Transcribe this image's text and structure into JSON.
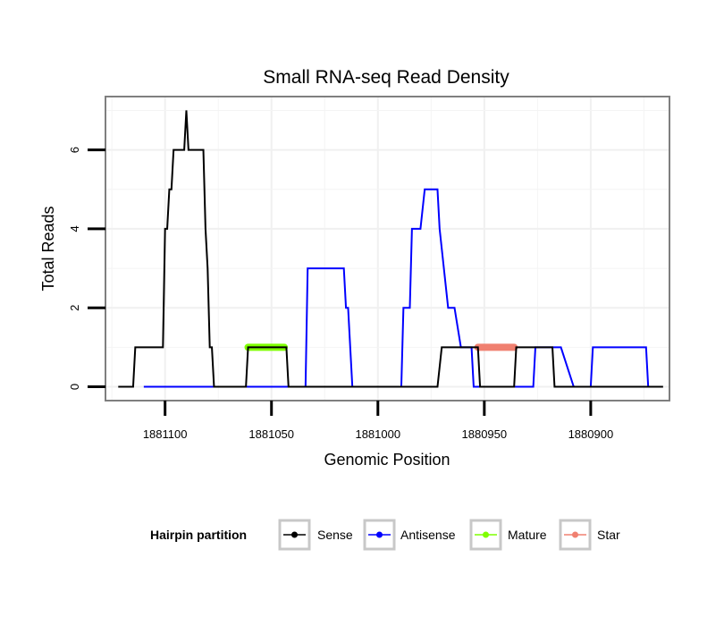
{
  "chart_data": {
    "type": "line",
    "title": "Small RNA-seq Read Density",
    "xlabel": "Genomic Position",
    "ylabel": "Total Reads",
    "x_reversed": true,
    "xlim": [
      1881128,
      1880863
    ],
    "ylim": [
      -0.35,
      7.35
    ],
    "xticks": [
      1881100,
      1881050,
      1881000,
      1880950,
      1880900
    ],
    "xtick_labels": [
      "1881100",
      "1881050",
      "1881000",
      "1880950",
      "1880900"
    ],
    "yticks": [
      0,
      2,
      4,
      6
    ],
    "ytick_labels": [
      "0",
      "2",
      "4",
      "6"
    ],
    "grid": true,
    "legend": {
      "title": "Hairpin partition",
      "position": "bottom",
      "entries": [
        "Sense",
        "Antisense",
        "Mature",
        "Star"
      ]
    },
    "series": [
      {
        "name": "Mature",
        "color": "#7FFF00",
        "line_width": "thick",
        "x": [
          1881061,
          1881044
        ],
        "y": [
          1,
          1
        ]
      },
      {
        "name": "Star",
        "color": "#F08070",
        "line_width": "thick",
        "x": [
          1880953,
          1880936
        ],
        "y": [
          1,
          1
        ]
      },
      {
        "name": "Antisense",
        "color": "#0000FF",
        "x": [
          1881110,
          1881034,
          1881033,
          1881016,
          1881015,
          1881014,
          1881012,
          1881009,
          1880989,
          1880988,
          1880985,
          1880984,
          1880980,
          1880978,
          1880972,
          1880971,
          1880967,
          1880964,
          1880961,
          1880956,
          1880955,
          1880927,
          1880926,
          1880914,
          1880908,
          1880900,
          1880899,
          1880874,
          1880873,
          1880869
        ],
        "y": [
          0,
          0,
          3,
          3,
          2,
          2,
          0,
          0,
          0,
          2,
          2,
          4,
          4,
          5,
          5,
          4,
          2,
          2,
          1,
          1,
          0,
          0,
          1,
          1,
          0,
          0,
          1,
          1,
          0,
          0
        ]
      },
      {
        "name": "Sense",
        "color": "#000000",
        "x": [
          1881122,
          1881115,
          1881114,
          1881101,
          1881100,
          1881099,
          1881098,
          1881097,
          1881096,
          1881094,
          1881093,
          1881092,
          1881091,
          1881090,
          1881089,
          1881084,
          1881083,
          1881082,
          1881081,
          1881080,
          1881079,
          1881078,
          1881077,
          1881076,
          1881075,
          1881074,
          1881062,
          1881061,
          1881060,
          1881044,
          1881043,
          1881042,
          1880972,
          1880970,
          1880953,
          1880952,
          1880936,
          1880935,
          1880935,
          1880934,
          1880918,
          1880917,
          1880866
        ],
        "y": [
          0,
          0,
          1,
          1,
          4,
          4,
          5,
          5,
          6,
          6,
          6,
          6,
          6,
          7,
          6,
          6,
          6,
          6,
          4,
          3,
          1,
          1,
          0,
          0,
          0,
          0,
          0,
          1,
          1,
          1,
          1,
          0,
          0,
          1,
          1,
          0,
          0,
          1,
          1,
          1,
          1,
          0,
          0
        ]
      }
    ]
  }
}
